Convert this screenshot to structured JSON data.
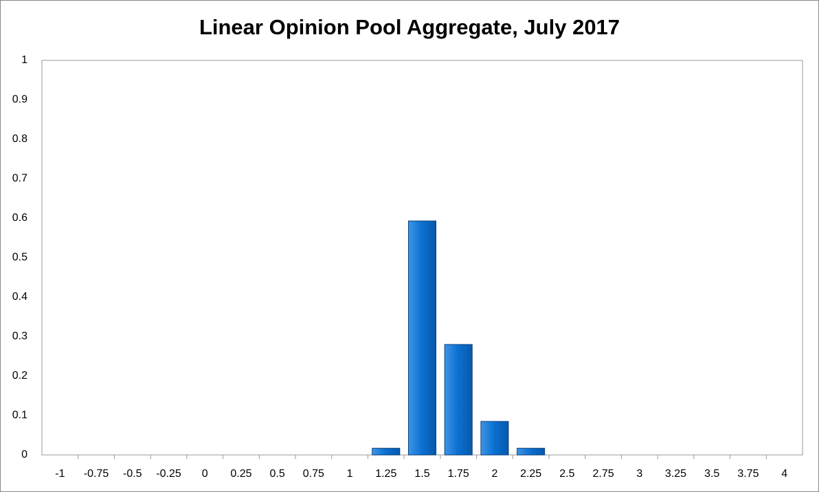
{
  "chart_data": {
    "type": "bar",
    "title": "Linear Opinion Pool Aggregate, July 2017",
    "categories": [
      "-1",
      "-0.75",
      "-0.5",
      "-0.25",
      "0",
      "0.25",
      "0.5",
      "0.75",
      "1",
      "1.25",
      "1.5",
      "1.75",
      "2",
      "2.25",
      "2.5",
      "2.75",
      "3",
      "3.25",
      "3.5",
      "3.75",
      "4"
    ],
    "values": [
      0,
      0,
      0,
      0,
      0,
      0,
      0,
      0,
      0,
      0.017,
      0.593,
      0.28,
      0.085,
      0.017,
      0,
      0,
      0,
      0,
      0,
      0,
      0
    ],
    "color": "#0a6fd0",
    "ylim": [
      0,
      1
    ],
    "yticks": [
      0,
      0.1,
      0.2,
      0.3,
      0.4,
      0.5,
      0.6,
      0.7,
      0.8,
      0.9,
      1
    ],
    "grid": false
  }
}
